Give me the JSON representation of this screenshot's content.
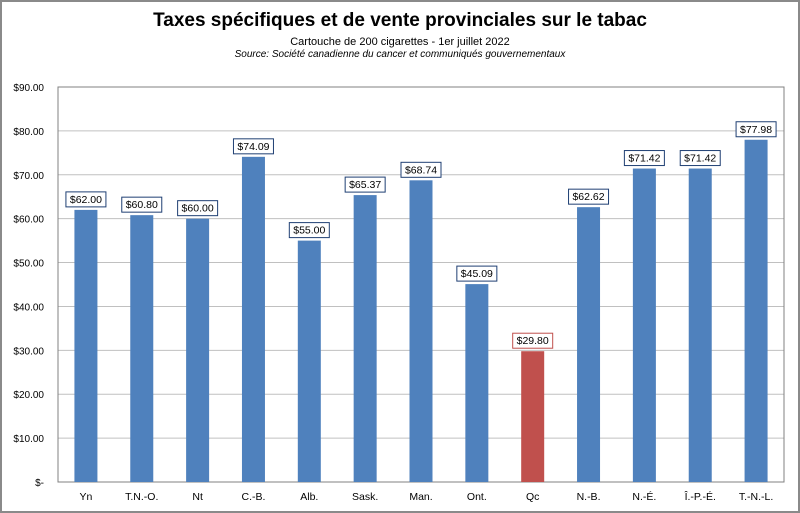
{
  "chart_data": {
    "type": "bar",
    "title": "Taxes spécifiques et de vente provinciales sur le tabac",
    "subtitle": "Cartouche de 200 cigarettes - 1er juillet 2022",
    "source": "Source: Société canadienne du cancer et communiqués gouvernementaux",
    "xlabel": "",
    "ylabel": "",
    "categories": [
      "Yn",
      "T.N.-O.",
      "Nt",
      "C.-B.",
      "Alb.",
      "Sask.",
      "Man.",
      "Ont.",
      "Qc",
      "N.-B.",
      "N.-É.",
      "Î.-P.-É.",
      "T.-N.-L."
    ],
    "values": [
      62.0,
      60.8,
      60.0,
      74.09,
      55.0,
      65.37,
      68.74,
      45.09,
      29.8,
      62.62,
      71.42,
      71.42,
      77.98
    ],
    "value_labels": [
      "$62.00",
      "$60.80",
      "$60.00",
      "$74.09",
      "$55.00",
      "$65.37",
      "$68.74",
      "$45.09",
      "$29.80",
      "$62.62",
      "$71.42",
      "$71.42",
      "$77.98"
    ],
    "ylim": [
      0,
      90
    ],
    "yticks": [
      0,
      10,
      20,
      30,
      40,
      50,
      60,
      70,
      80,
      90
    ],
    "ytick_labels": [
      "$-",
      "$10.00",
      "$20.00",
      "$30.00",
      "$40.00",
      "$50.00",
      "$60.00",
      "$70.00",
      "$80.00",
      "$90.00"
    ],
    "grid": true,
    "legend": "none",
    "highlight_index": 8,
    "colors": {
      "bar": "#4f81bd",
      "highlight": "#c0504d",
      "grid": "#c0c0c0",
      "label_border": "#1f3f73",
      "label_border_highlight": "#c0504d"
    }
  }
}
